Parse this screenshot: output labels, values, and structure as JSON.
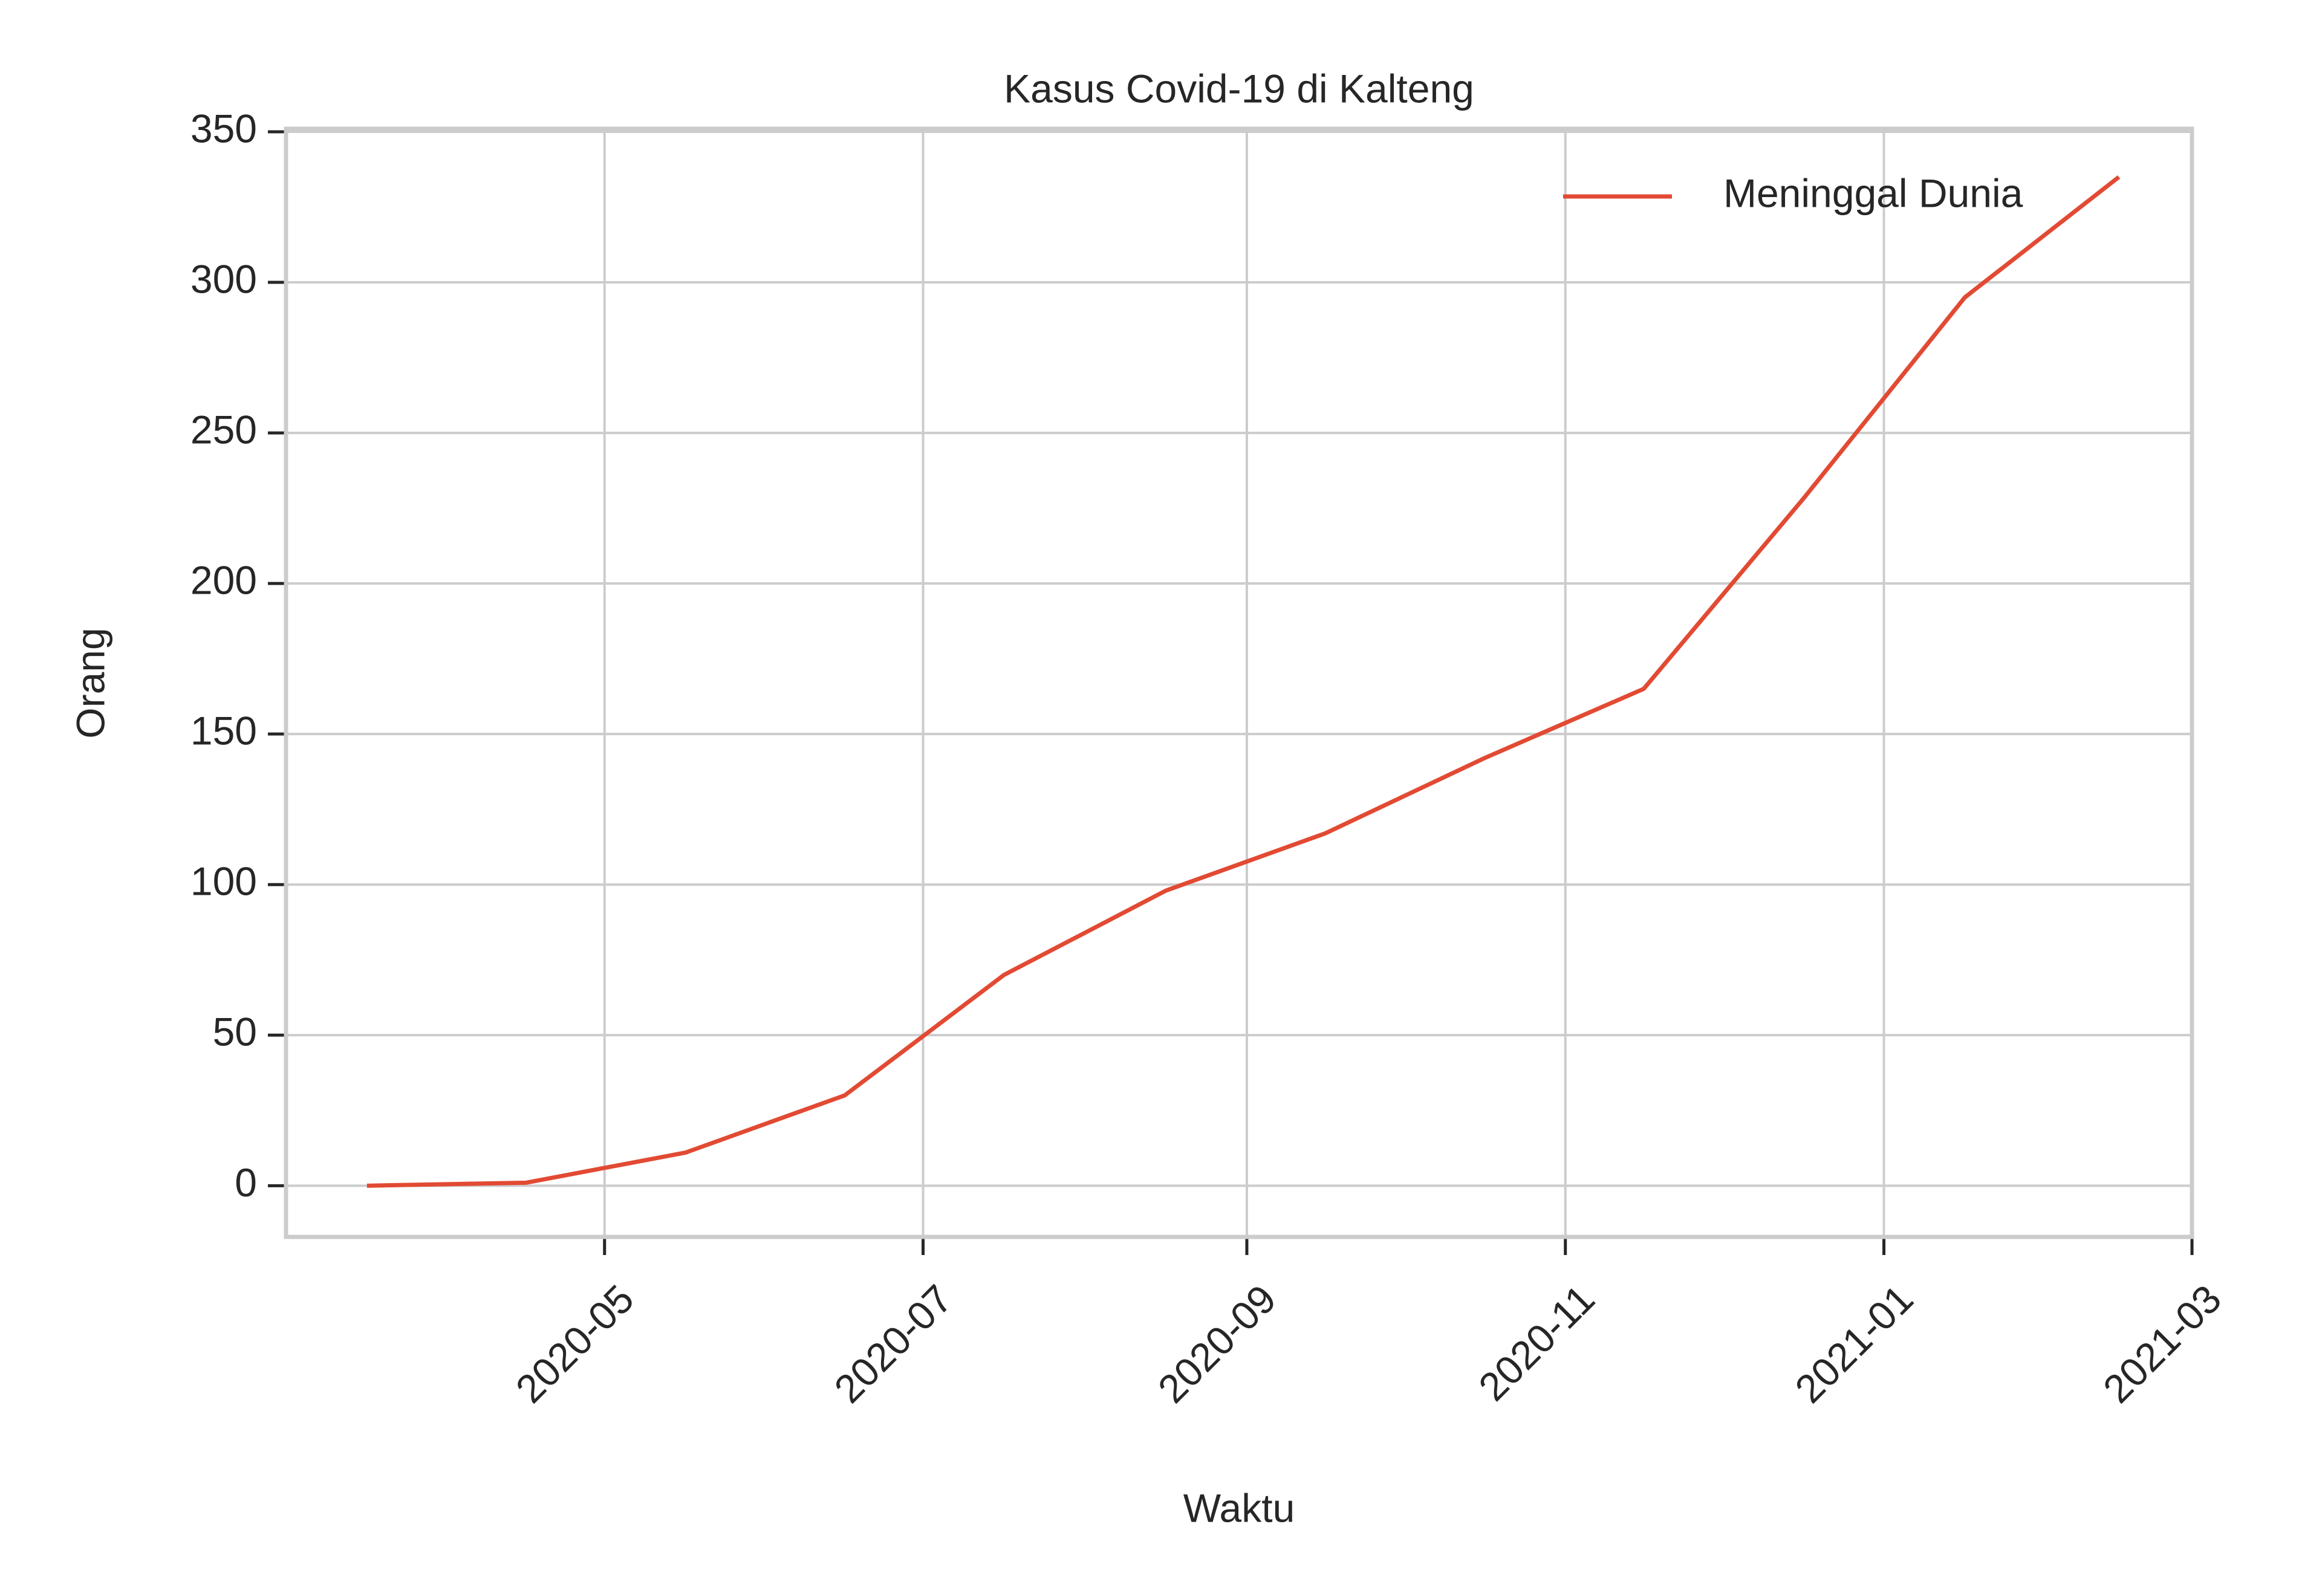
{
  "chart_data": {
    "type": "line",
    "title": "Kasus Covid-19 di Kalteng",
    "x_label": "Waktu",
    "y_label": "Orang",
    "x": [
      "2020-03",
      "2020-04",
      "2020-05",
      "2020-06",
      "2020-07",
      "2020-08",
      "2020-09",
      "2020-10",
      "2020-11",
      "2020-12",
      "2021-01",
      "2021-02"
    ],
    "series": [
      {
        "name": "Meninggal Dunia",
        "color": "#e24a33",
        "values": [
          0,
          1,
          11,
          30,
          70,
          98,
          117,
          142,
          165,
          228,
          295,
          335
        ]
      }
    ],
    "xlim": [
      "2020-03",
      "2021-03"
    ],
    "xticks": [
      "2020-05",
      "2020-07",
      "2020-09",
      "2020-11",
      "2021-01",
      "2021-03"
    ],
    "ylim": [
      -17,
      351
    ],
    "yticks": [
      0,
      50,
      100,
      150,
      200,
      250,
      300,
      350
    ],
    "grid": true,
    "legend": "upper right"
  }
}
